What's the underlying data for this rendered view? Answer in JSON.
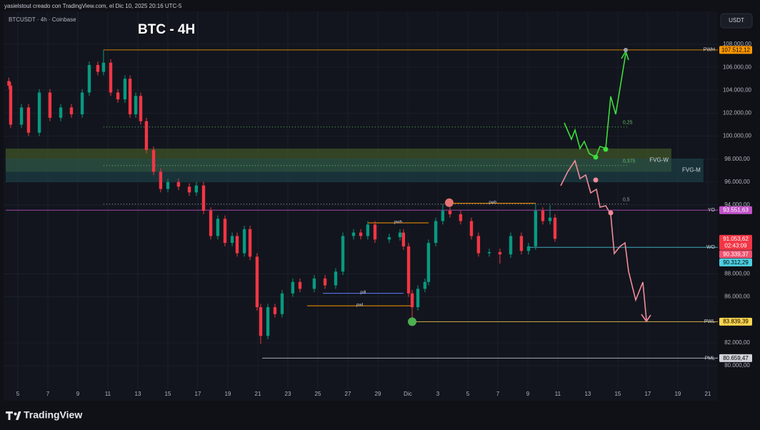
{
  "header": {
    "caption": "yasielstout creado con TradingView.com, el Dic 10, 2025 20:16 UTC-5",
    "symbol": "BTCUSDT · 4h · Coinbase",
    "currency": "USDT",
    "brand": "TradingView"
  },
  "chart_data": {
    "type": "candlestick",
    "title": "BTC - 4H",
    "x": [
      -0.6,
      -0.48,
      0.24,
      0.71,
      1.43,
      2.14,
      2.86,
      3.57,
      4.29,
      4.76,
      5.33,
      5.71,
      6.19,
      6.67,
      7.14,
      7.48,
      7.86,
      8.19,
      8.57,
      9.05,
      9.52,
      10.0,
      10.71,
      11.43,
      11.9,
      12.38,
      12.86,
      13.33,
      13.81,
      14.29,
      14.62,
      15.1,
      15.48,
      15.95,
      16.19,
      16.67,
      17.14,
      17.62,
      18.33,
      18.81,
      19.76,
      20.48,
      21.19,
      21.67,
      22.38,
      22.86,
      23.33,
      23.81,
      24.76,
      25.48,
      25.71,
      26.05,
      26.29,
      26.67,
      27.14,
      27.38,
      27.86,
      28.33,
      28.81,
      29.52,
      30.24,
      30.71,
      31.43,
      32.14,
      32.86,
      33.57,
      34.05,
      34.52,
      35.0,
      35.48,
      35.81
    ],
    "open": [
      104800,
      104400,
      101000,
      102500,
      100300,
      103800,
      101600,
      102500,
      101900,
      103800,
      106200,
      105600,
      106400,
      103800,
      103200,
      105000,
      101900,
      103500,
      101300,
      98800,
      96900,
      95400,
      96000,
      95600,
      95100,
      95700,
      93500,
      91300,
      92800,
      90700,
      91300,
      89800,
      91900,
      89500,
      85100,
      82600,
      85100,
      84500,
      86300,
      87300,
      86700,
      87600,
      87000,
      88200,
      91300,
      91600,
      91300,
      92300,
      91000,
      91200,
      91600,
      90400,
      86300,
      85100,
      86700,
      87300,
      90700,
      92600,
      93500,
      93200,
      92600,
      91300,
      89800,
      89900,
      89700,
      91300,
      90000,
      90400,
      93500,
      92600,
      92900
    ],
    "high": [
      105100,
      104700,
      102800,
      102800,
      104100,
      104100,
      102800,
      102800,
      104100,
      106500,
      106500,
      107512.12,
      106700,
      104100,
      105300,
      105300,
      103800,
      103800,
      101600,
      99100,
      97200,
      96300,
      96300,
      95900,
      96000,
      96000,
      93800,
      93100,
      93100,
      91600,
      91600,
      92200,
      92200,
      89800,
      85400,
      85400,
      85400,
      86600,
      87600,
      87600,
      87900,
      87900,
      88500,
      91600,
      91900,
      91900,
      92600,
      92600,
      91500,
      91900,
      91900,
      90700,
      86600,
      87000,
      87600,
      91000,
      92900,
      94100,
      93800,
      93500,
      92900,
      91600,
      90200,
      90200,
      91600,
      91600,
      90700,
      94100,
      93800,
      94000,
      93200
    ],
    "low": [
      104100,
      100700,
      100700,
      100000,
      100000,
      101300,
      101300,
      101600,
      101600,
      103500,
      105300,
      105300,
      103500,
      102900,
      102900,
      101600,
      101600,
      101000,
      98500,
      96600,
      95100,
      95100,
      95300,
      94800,
      94800,
      93200,
      91000,
      91000,
      90400,
      90400,
      89500,
      89500,
      89200,
      84800,
      81900,
      82300,
      84200,
      84200,
      86000,
      86400,
      86400,
      86700,
      86700,
      87900,
      91000,
      91000,
      91000,
      90700,
      90700,
      90900,
      90100,
      86000,
      83900,
      84800,
      86400,
      87000,
      90400,
      92300,
      92900,
      92300,
      91000,
      89500,
      89500,
      88900,
      89400,
      89700,
      89700,
      90100,
      92300,
      92300,
      90800
    ],
    "close": [
      104400,
      101000,
      102500,
      100300,
      103800,
      101600,
      102500,
      101900,
      103800,
      106200,
      105600,
      106400,
      103800,
      103200,
      105000,
      101900,
      103500,
      101300,
      98800,
      96900,
      95400,
      96000,
      95600,
      95100,
      95700,
      93500,
      91300,
      92800,
      90700,
      91300,
      89800,
      91900,
      89500,
      85100,
      82600,
      85100,
      84500,
      86300,
      87300,
      86700,
      87600,
      87000,
      88200,
      91300,
      91600,
      91300,
      92300,
      91000,
      91200,
      91600,
      90400,
      86300,
      85100,
      86700,
      87300,
      90700,
      92600,
      93500,
      93200,
      92600,
      91300,
      89800,
      89900,
      89700,
      91300,
      90000,
      90400,
      93500,
      92600,
      92900,
      91053.62
    ],
    "up_color": "#089981",
    "down_color": "#f23645",
    "grid": true,
    "xlim": [
      -0.81,
      46.67
    ],
    "xticks": [
      {
        "value": 0,
        "label": "5"
      },
      {
        "value": 2,
        "label": "7"
      },
      {
        "value": 4,
        "label": "9"
      },
      {
        "value": 6,
        "label": "11"
      },
      {
        "value": 8,
        "label": "13"
      },
      {
        "value": 10,
        "label": "15"
      },
      {
        "value": 12,
        "label": "17"
      },
      {
        "value": 14,
        "label": "19"
      },
      {
        "value": 16,
        "label": "21"
      },
      {
        "value": 18,
        "label": "23"
      },
      {
        "value": 20,
        "label": "25"
      },
      {
        "value": 22,
        "label": "27"
      },
      {
        "value": 24,
        "label": "29"
      },
      {
        "value": 26,
        "label": "Dic"
      },
      {
        "value": 28,
        "label": "3"
      },
      {
        "value": 30,
        "label": "5"
      },
      {
        "value": 32,
        "label": "7"
      },
      {
        "value": 34,
        "label": "9"
      },
      {
        "value": 36,
        "label": "11"
      },
      {
        "value": 38,
        "label": "13"
      },
      {
        "value": 40,
        "label": "15"
      },
      {
        "value": 42,
        "label": "17"
      },
      {
        "value": 44,
        "label": "19"
      },
      {
        "value": 46,
        "label": "21"
      }
    ],
    "ylim": [
      78260,
      109370
    ],
    "yticks": [
      {
        "value": 108000,
        "label": "108.000,00"
      },
      {
        "value": 106000,
        "label": "106.000,00"
      },
      {
        "value": 104000,
        "label": "104.000,00"
      },
      {
        "value": 102000,
        "label": "102.000,00"
      },
      {
        "value": 100000,
        "label": "100.000,00"
      },
      {
        "value": 98000,
        "label": "98.000,00"
      },
      {
        "value": 96000,
        "label": "96.000,00"
      },
      {
        "value": 94000,
        "label": "94.000,00"
      },
      {
        "value": 88000,
        "label": "88.000,00"
      },
      {
        "value": 86000,
        "label": "86.000,00"
      },
      {
        "value": 82000,
        "label": "82.000,00"
      },
      {
        "value": 80000,
        "label": "80.000,00"
      }
    ],
    "zones": [
      {
        "name": "FVG-W",
        "start": -0.81,
        "end": 43.57,
        "top": 98917,
        "bottom": 96900,
        "color": "#4f6b2a"
      },
      {
        "name": "FVG-M",
        "start": -0.81,
        "end": 45.71,
        "top": 98046,
        "bottom": 95993,
        "color": "#1f4a50"
      }
    ],
    "levels": [
      {
        "name": "PWH",
        "value": 107512.12,
        "label": "107.512,12",
        "start": 5.71,
        "color": "#ff9800",
        "tag_text": "#000000"
      },
      {
        "name": "YO",
        "value": 93551.63,
        "label": "93.551,63",
        "start": -0.81,
        "color": "#c152c9",
        "tag_text": "#ffffff"
      },
      {
        "name": "WO",
        "value": 90312.29,
        "label": "90.312,29",
        "start": 34.05,
        "color": "#4dd0e1",
        "tag_text": "#000000"
      },
      {
        "name": "PWL",
        "value": 83839.39,
        "label": "83.839,39",
        "start": 26.29,
        "color": "#ffd54f",
        "tag_text": "#000000"
      },
      {
        "name": "PML",
        "value": 80659.47,
        "label": "80.659,47",
        "start": 16.29,
        "color": "#d0d3da",
        "tag_text": "#000000"
      }
    ],
    "price_tags": [
      {
        "value": 91053.62,
        "label": "91.053,62",
        "sub": "02:43:09",
        "color": "#f23645"
      },
      {
        "value": 90339.37,
        "label": "90.339,37",
        "color": "#ef5370"
      }
    ],
    "fib": [
      {
        "label": "0,25",
        "value": 100799,
        "start": 5.71,
        "end": 40.71,
        "color": "#66bb6a"
      },
      {
        "label": "0,375",
        "value": 97442,
        "start": 5.71,
        "end": 40.71,
        "color": "#66bb6a"
      },
      {
        "label": "0,5",
        "value": 94086,
        "start": 5.71,
        "end": 40.71,
        "color": "#9e9e9e"
      }
    ],
    "annotations": [
      {
        "label": "pwh",
        "value": 92450,
        "start": 23.33,
        "end": 27.38,
        "color": "#ff9800"
      },
      {
        "label": "pwh",
        "value": 94150,
        "start": 28.81,
        "end": 34.52,
        "color": "#ff9800"
      },
      {
        "label": "pdl",
        "value": 86310,
        "start": 20.33,
        "end": 25.71,
        "color": "#5c7cfa"
      },
      {
        "label": "pwl",
        "value": 85220,
        "start": 19.29,
        "end": 26.29,
        "color": "#ff9800"
      }
    ],
    "markers": [
      {
        "x": 28.76,
        "value": 94200,
        "color": "#e57373"
      },
      {
        "x": 26.29,
        "value": 83839.39,
        "color": "#4caf50"
      }
    ]
  }
}
